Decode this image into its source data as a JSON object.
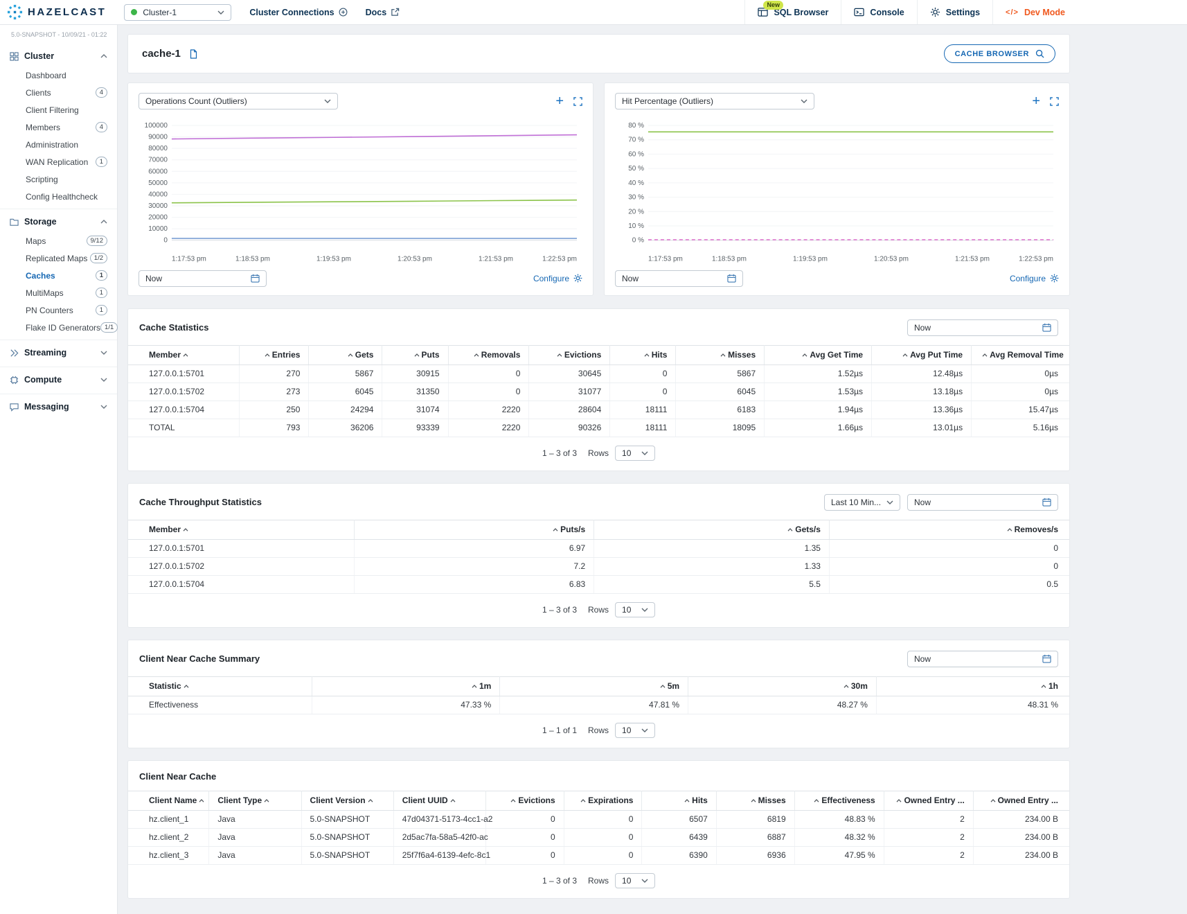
{
  "topbar": {
    "brand": "HAZELCAST",
    "cluster_select": {
      "value": "Cluster-1",
      "status_color": "#3cb549"
    },
    "cluster_connections_label": "Cluster Connections",
    "docs_label": "Docs",
    "actions": {
      "sql_browser": {
        "label": "SQL Browser",
        "badge": "New"
      },
      "console": {
        "label": "Console"
      },
      "settings": {
        "label": "Settings"
      },
      "dev_mode": {
        "label": "Dev Mode",
        "icon_text": "</>"
      }
    },
    "colors": {
      "accent": "#1567b3",
      "dev_mode": "#f0591f",
      "new_badge_bg": "#cfe54a"
    }
  },
  "sidebar": {
    "version": "5.0-SNAPSHOT - 10/09/21 - 01:22",
    "sections": [
      {
        "label": "Cluster",
        "icon": "cluster-icon",
        "expanded": true,
        "items": [
          {
            "label": "Dashboard"
          },
          {
            "label": "Clients",
            "badge": "4"
          },
          {
            "label": "Client Filtering"
          },
          {
            "label": "Members",
            "badge": "4"
          },
          {
            "label": "Administration"
          },
          {
            "label": "WAN Replication",
            "badge": "1"
          },
          {
            "label": "Scripting"
          },
          {
            "label": "Config Healthcheck"
          }
        ]
      },
      {
        "label": "Storage",
        "icon": "storage-icon",
        "expanded": true,
        "items": [
          {
            "label": "Maps",
            "badge": "9/12"
          },
          {
            "label": "Replicated Maps",
            "badge": "1/2"
          },
          {
            "label": "Caches",
            "badge": "1",
            "active": true
          },
          {
            "label": "MultiMaps",
            "badge": "1"
          },
          {
            "label": "PN Counters",
            "badge": "1"
          },
          {
            "label": "Flake ID Generators",
            "badge": "1/1"
          }
        ]
      },
      {
        "label": "Streaming",
        "icon": "streaming-icon",
        "expanded": false,
        "items": []
      },
      {
        "label": "Compute",
        "icon": "compute-icon",
        "expanded": false,
        "items": []
      },
      {
        "label": "Messaging",
        "icon": "messaging-icon",
        "expanded": false,
        "items": []
      }
    ]
  },
  "page": {
    "title": "cache-1",
    "cache_browser_button": "CACHE BROWSER"
  },
  "charts": [
    {
      "selector": "Operations Count (Outliers)",
      "date_value": "Now",
      "configure_label": "Configure",
      "chart_data": {
        "type": "line",
        "title": "Operations Count (Outliers)",
        "x_labels": [
          "1:17:53 pm",
          "1:18:53 pm",
          "1:19:53 pm",
          "1:20:53 pm",
          "1:21:53 pm",
          "1:22:53 pm"
        ],
        "ylim": [
          0,
          100000
        ],
        "y_tick_labels": [
          "100000",
          "90000",
          "80000",
          "70000",
          "60000",
          "50000",
          "40000",
          "30000",
          "20000",
          "10000",
          "0"
        ],
        "grid": true,
        "series": [
          {
            "color": "#c06fd6",
            "values": [
              88200,
              88900,
              89600,
              90300,
              91000,
              91800
            ]
          },
          {
            "color": "#8bc34a",
            "values": [
              32600,
              33100,
              33500,
              34000,
              34500,
              35000
            ]
          },
          {
            "color": "#7b9fd4",
            "values": [
              1600,
              1600,
              1600,
              1600,
              1600,
              1600
            ]
          }
        ]
      }
    },
    {
      "selector": "Hit Percentage (Outliers)",
      "date_value": "Now",
      "configure_label": "Configure",
      "chart_data": {
        "type": "line",
        "title": "Hit Percentage (Outliers)",
        "x_labels": [
          "1:17:53 pm",
          "1:18:53 pm",
          "1:19:53 pm",
          "1:20:53 pm",
          "1:21:53 pm",
          "1:22:53 pm"
        ],
        "ylim": [
          0,
          80
        ],
        "y_tick_labels": [
          "80 %",
          "70 %",
          "60 %",
          "50 %",
          "40 %",
          "30 %",
          "20 %",
          "10 %",
          "0 %"
        ],
        "grid": true,
        "series": [
          {
            "color": "#8bc34a",
            "values": [
              75.5,
              75.5,
              75.5,
              75.5,
              75.5,
              75.5
            ]
          },
          {
            "color": "#e07bd0",
            "dashed": true,
            "values": [
              0.4,
              0.4,
              0.4,
              0.4,
              0.4,
              0.4
            ]
          }
        ]
      }
    }
  ],
  "tables": [
    {
      "title": "Cache Statistics",
      "controls": [
        {
          "type": "date",
          "value": "Now"
        }
      ],
      "columns": [
        {
          "label": "Member",
          "align": "left",
          "width": "11.8%"
        },
        {
          "label": "Entries",
          "align": "right",
          "width": "7.4%"
        },
        {
          "label": "Gets",
          "align": "right",
          "width": "7.8%"
        },
        {
          "label": "Puts",
          "align": "right",
          "width": "7.0%"
        },
        {
          "label": "Removals",
          "align": "right",
          "width": "8.6%"
        },
        {
          "label": "Evictions",
          "align": "right",
          "width": "8.6%"
        },
        {
          "label": "Hits",
          "align": "right",
          "width": "7.0%"
        },
        {
          "label": "Misses",
          "align": "right",
          "width": "9.4%"
        },
        {
          "label": "Avg Get Time",
          "align": "right",
          "width": "11.4%"
        },
        {
          "label": "Avg Put Time",
          "align": "right",
          "width": "10.6%"
        },
        {
          "label": "Avg Removal Time",
          "align": "right",
          "width": "10.4%"
        }
      ],
      "rows": [
        [
          "127.0.0.1:5701",
          "270",
          "5867",
          "30915",
          "0",
          "30645",
          "0",
          "5867",
          "1.52µs",
          "12.48µs",
          "0µs"
        ],
        [
          "127.0.0.1:5702",
          "273",
          "6045",
          "31350",
          "0",
          "31077",
          "0",
          "6045",
          "1.53µs",
          "13.18µs",
          "0µs"
        ],
        [
          "127.0.0.1:5704",
          "250",
          "24294",
          "31074",
          "2220",
          "28604",
          "18111",
          "6183",
          "1.94µs",
          "13.36µs",
          "15.47µs"
        ],
        [
          "TOTAL",
          "793",
          "36206",
          "93339",
          "2220",
          "90326",
          "18111",
          "18095",
          "1.66µs",
          "13.01µs",
          "5.16µs"
        ]
      ],
      "pagination": {
        "range": "1 – 3 of 3",
        "rows_label": "Rows",
        "page_size": "10"
      }
    },
    {
      "title": "Cache Throughput Statistics",
      "controls": [
        {
          "type": "select",
          "value": "Last 10 Min...",
          "width": 110
        },
        {
          "type": "date",
          "value": "Now"
        }
      ],
      "columns": [
        {
          "label": "Member",
          "align": "left",
          "width": "24%"
        },
        {
          "label": "Puts/s",
          "align": "right",
          "width": "25.5%"
        },
        {
          "label": "Gets/s",
          "align": "right",
          "width": "25%"
        },
        {
          "label": "Removes/s",
          "align": "right",
          "width": "25.5%"
        }
      ],
      "rows": [
        [
          "127.0.0.1:5701",
          "6.97",
          "1.35",
          "0"
        ],
        [
          "127.0.0.1:5702",
          "7.2",
          "1.33",
          "0"
        ],
        [
          "127.0.0.1:5704",
          "6.83",
          "5.5",
          "0.5"
        ]
      ],
      "pagination": {
        "range": "1 – 3 of 3",
        "rows_label": "Rows",
        "page_size": "10"
      }
    },
    {
      "title": "Client Near Cache Summary",
      "controls": [
        {
          "type": "date",
          "value": "Now"
        }
      ],
      "columns": [
        {
          "label": "Statistic",
          "align": "left",
          "width": "19.5%"
        },
        {
          "label": "1m",
          "align": "right",
          "width": "20%"
        },
        {
          "label": "5m",
          "align": "right",
          "width": "20%"
        },
        {
          "label": "30m",
          "align": "right",
          "width": "20%"
        },
        {
          "label": "1h",
          "align": "right",
          "width": "20.5%"
        }
      ],
      "rows": [
        [
          "Effectiveness",
          "47.33 %",
          "47.81 %",
          "48.27 %",
          "48.31 %"
        ]
      ],
      "pagination": {
        "range": "1 – 1 of 1",
        "rows_label": "Rows",
        "page_size": "10"
      }
    },
    {
      "title": "Client Near Cache",
      "controls": [],
      "columns": [
        {
          "label": "Client Name",
          "align": "left",
          "width": "8.6%"
        },
        {
          "label": "Client Type",
          "align": "left",
          "width": "9.8%"
        },
        {
          "label": "Client Version",
          "align": "left",
          "width": "9.8%"
        },
        {
          "label": "Client UUID",
          "align": "left",
          "width": "9.8%"
        },
        {
          "label": "Evictions",
          "align": "right",
          "width": "8.3%"
        },
        {
          "label": "Expirations",
          "align": "right",
          "width": "8.3%"
        },
        {
          "label": "Hits",
          "align": "right",
          "width": "7.9%"
        },
        {
          "label": "Misses",
          "align": "right",
          "width": "8.3%"
        },
        {
          "label": "Effectiveness",
          "align": "right",
          "width": "9.5%"
        },
        {
          "label": "Owned Entry ...",
          "align": "right",
          "width": "9.5%"
        },
        {
          "label": "Owned Entry ...",
          "align": "right",
          "width": "10.2%"
        }
      ],
      "rows": [
        [
          "hz.client_1",
          "Java",
          "5.0-SNAPSHOT",
          "47d04371-5173-4cc1-a2",
          "0",
          "0",
          "6507",
          "6819",
          "48.83 %",
          "2",
          "234.00 B"
        ],
        [
          "hz.client_2",
          "Java",
          "5.0-SNAPSHOT",
          "2d5ac7fa-58a5-42f0-ac",
          "0",
          "0",
          "6439",
          "6887",
          "48.32 %",
          "2",
          "234.00 B"
        ],
        [
          "hz.client_3",
          "Java",
          "5.0-SNAPSHOT",
          "25f7f6a4-6139-4efc-8c1",
          "0",
          "0",
          "6390",
          "6936",
          "47.95 %",
          "2",
          "234.00 B"
        ]
      ],
      "pagination": {
        "range": "1 – 3 of 3",
        "rows_label": "Rows",
        "page_size": "10"
      }
    }
  ]
}
